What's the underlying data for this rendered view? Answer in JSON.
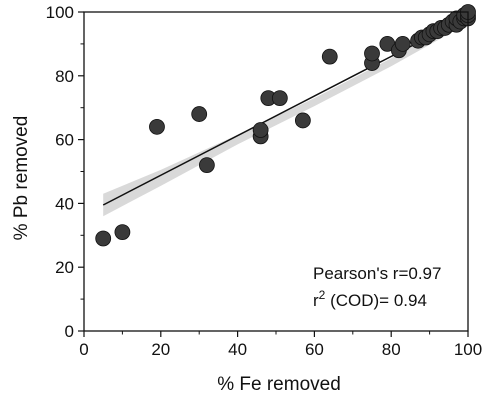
{
  "chart_data": {
    "type": "scatter",
    "xlabel": "% Fe removed",
    "ylabel": "% Pb removed",
    "xlim": [
      0,
      100
    ],
    "ylim": [
      0,
      100
    ],
    "xticks": [
      0,
      20,
      40,
      60,
      80,
      100
    ],
    "yticks": [
      0,
      20,
      40,
      60,
      80,
      100
    ],
    "grid": false,
    "points": [
      {
        "x": 5,
        "y": 29
      },
      {
        "x": 10,
        "y": 31
      },
      {
        "x": 19,
        "y": 64
      },
      {
        "x": 30,
        "y": 68
      },
      {
        "x": 32,
        "y": 52
      },
      {
        "x": 46,
        "y": 61
      },
      {
        "x": 46,
        "y": 63
      },
      {
        "x": 48,
        "y": 73
      },
      {
        "x": 51,
        "y": 73
      },
      {
        "x": 57,
        "y": 66
      },
      {
        "x": 64,
        "y": 86
      },
      {
        "x": 75,
        "y": 84
      },
      {
        "x": 75,
        "y": 87
      },
      {
        "x": 79,
        "y": 90
      },
      {
        "x": 82,
        "y": 88
      },
      {
        "x": 83,
        "y": 90
      },
      {
        "x": 87,
        "y": 91
      },
      {
        "x": 88,
        "y": 92
      },
      {
        "x": 89,
        "y": 92
      },
      {
        "x": 90,
        "y": 93
      },
      {
        "x": 91,
        "y": 94
      },
      {
        "x": 92,
        "y": 94
      },
      {
        "x": 93,
        "y": 95
      },
      {
        "x": 94,
        "y": 95
      },
      {
        "x": 95,
        "y": 96
      },
      {
        "x": 96,
        "y": 97
      },
      {
        "x": 97,
        "y": 96
      },
      {
        "x": 97,
        "y": 98
      },
      {
        "x": 98,
        "y": 97
      },
      {
        "x": 99,
        "y": 98
      },
      {
        "x": 99,
        "y": 99
      },
      {
        "x": 100,
        "y": 98
      },
      {
        "x": 100,
        "y": 99
      },
      {
        "x": 100,
        "y": 100
      }
    ],
    "fit_line": {
      "x": [
        5,
        100
      ],
      "y": [
        39.5,
        98.5
      ]
    },
    "confidence_band": {
      "x": [
        5,
        20,
        40,
        60,
        80,
        100
      ],
      "upper": [
        43,
        50.5,
        61.5,
        73,
        85.5,
        100
      ],
      "lower": [
        36,
        45.5,
        58.5,
        70.5,
        83,
        96.5
      ]
    },
    "colors": {
      "marker": "#3a3a3a",
      "band": "#d9d9d9",
      "line": "#111111"
    },
    "annotations": {
      "pearson": "Pearson's r=0.97",
      "r2_base": "r",
      "r2_exp": "2",
      "r2_rest": " (COD)= 0.94"
    }
  }
}
